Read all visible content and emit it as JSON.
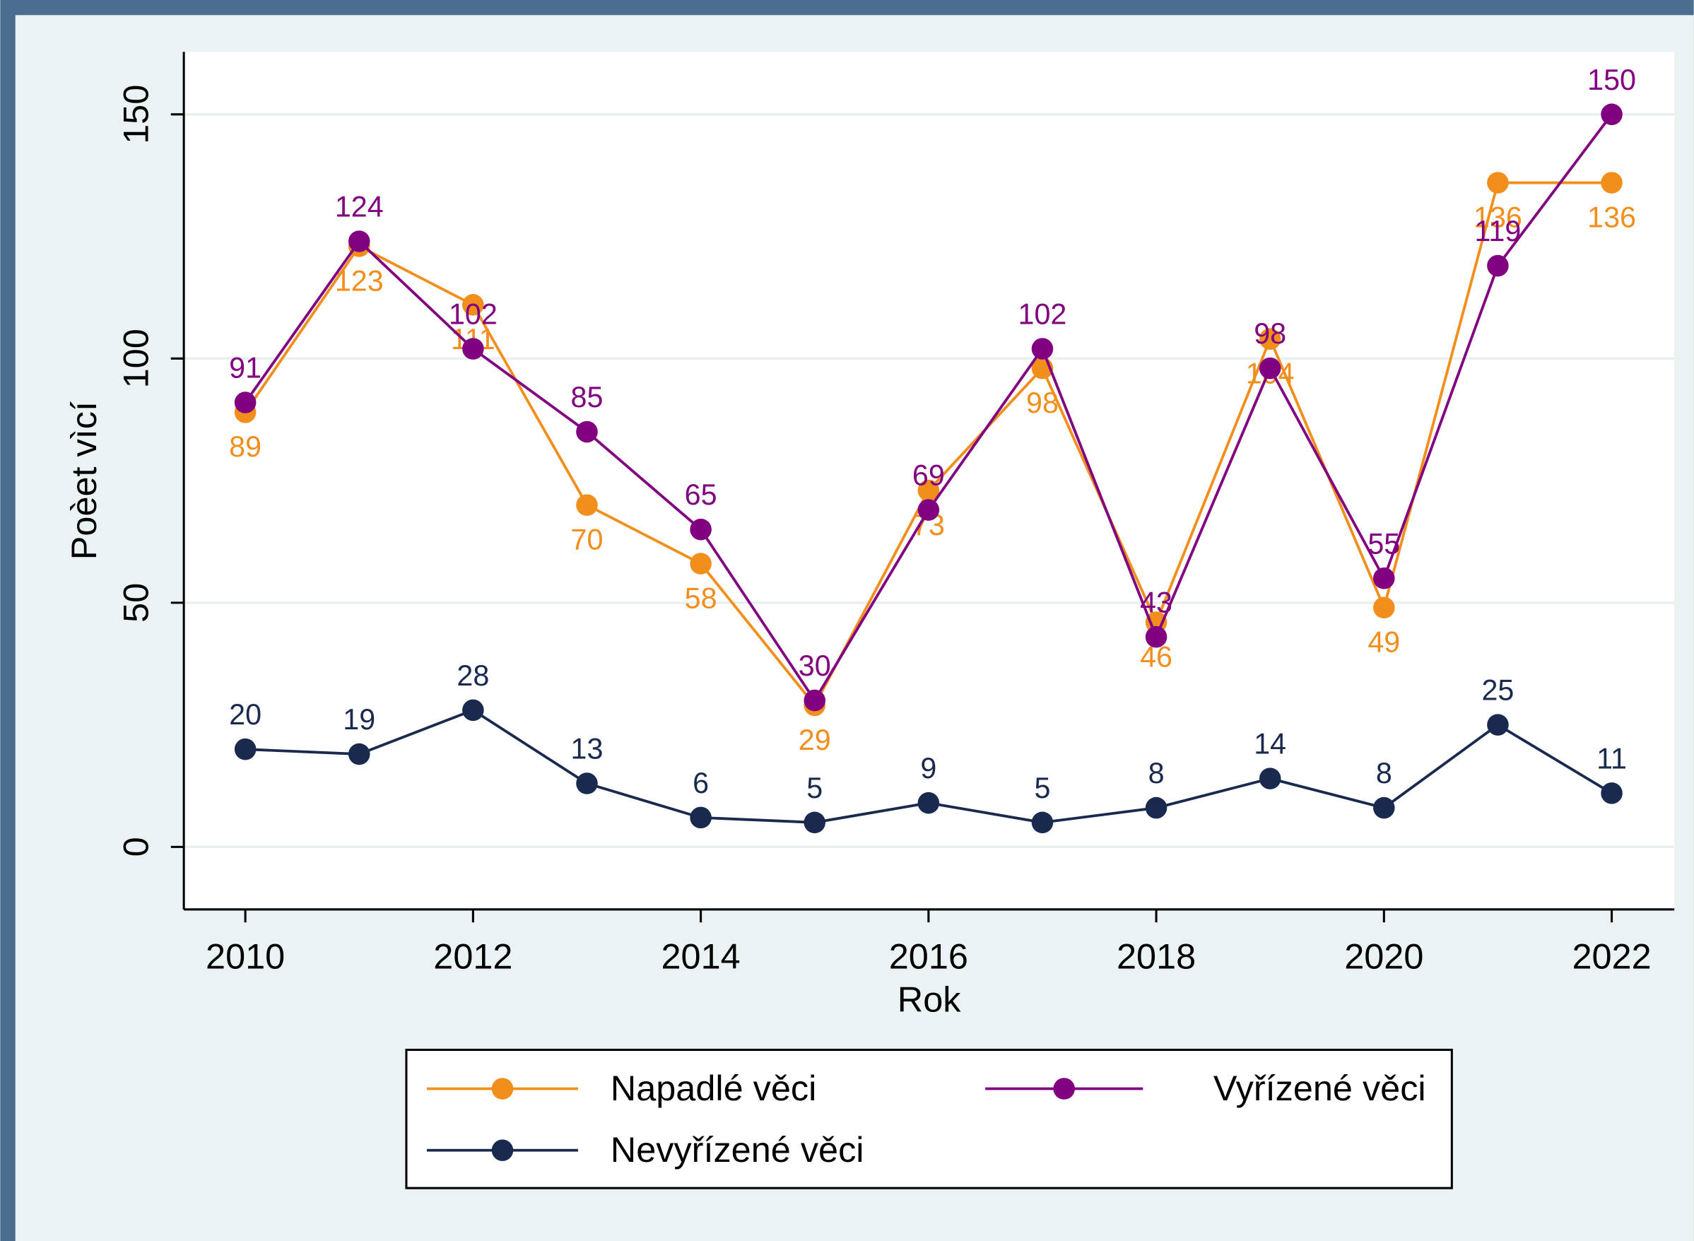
{
  "chart_data": {
    "type": "line",
    "x": [
      2010,
      2011,
      2012,
      2013,
      2014,
      2015,
      2016,
      2017,
      2018,
      2019,
      2020,
      2021,
      2022
    ],
    "series": [
      {
        "name": "Napadlé věci",
        "color": "#f28e1c",
        "values": [
          89,
          123,
          111,
          70,
          58,
          29,
          73,
          98,
          46,
          104,
          49,
          136,
          136
        ]
      },
      {
        "name": "Vyřízené věci",
        "color": "#800080",
        "values": [
          91,
          124,
          102,
          85,
          65,
          30,
          69,
          102,
          43,
          98,
          55,
          119,
          150
        ]
      },
      {
        "name": "Nevyřízené věci",
        "color": "#1a2a4e",
        "values": [
          20,
          19,
          28,
          13,
          6,
          5,
          9,
          5,
          8,
          14,
          8,
          25,
          11
        ]
      }
    ],
    "xlabel": "Rok",
    "ylabel": "Poèet vìcí",
    "xlim": [
      2009.46,
      2022.55
    ],
    "ylim": [
      -12.8,
      162.8
    ],
    "xticks": [
      2010,
      2012,
      2014,
      2016,
      2018,
      2020,
      2022
    ],
    "yticks": [
      0,
      50,
      100,
      150
    ],
    "grid": true
  }
}
